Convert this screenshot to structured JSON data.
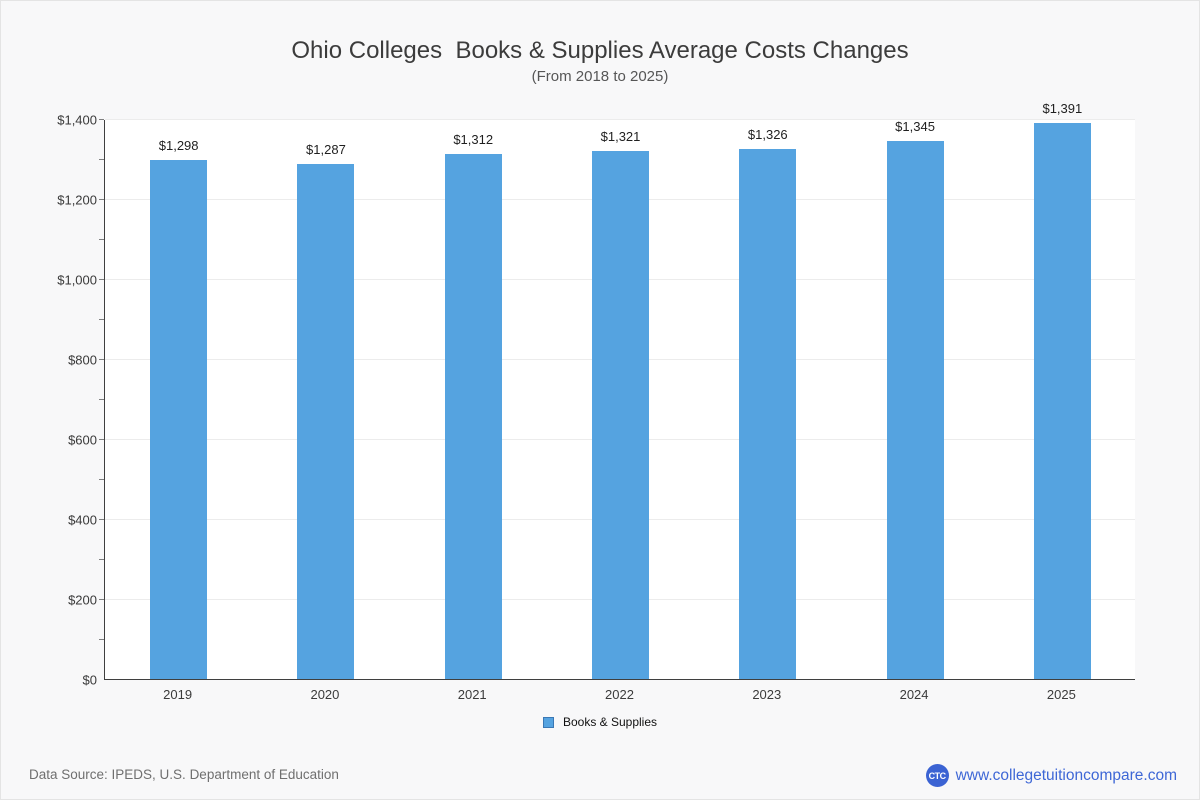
{
  "page": {
    "background_color": "#f8f8f9",
    "plot_background_color": "#ffffff",
    "accent_color": "#55a3e0"
  },
  "header": {
    "title": "Ohio Colleges  Books & Supplies Average Costs Changes",
    "subtitle": "(From 2018 to 2025)"
  },
  "chart_data": {
    "type": "bar",
    "title": "Ohio Colleges  Books & Supplies Average Costs Changes",
    "subtitle": "(From 2018 to 2025)",
    "categories": [
      "2019",
      "2020",
      "2021",
      "2022",
      "2023",
      "2024",
      "2025"
    ],
    "series": [
      {
        "name": "Books & Supplies",
        "values": [
          1298,
          1287,
          1312,
          1321,
          1326,
          1345,
          1391
        ],
        "labels": [
          "$1,298",
          "$1,287",
          "$1,312",
          "$1,321",
          "$1,326",
          "$1,345",
          "$1,391"
        ],
        "color": "#55a3e0"
      }
    ],
    "xlabel": "",
    "ylabel": "",
    "ylim": [
      0,
      1400
    ],
    "ytick_step": 200,
    "minor_tick_step": 100,
    "ytick_labels": [
      "$0",
      "$200",
      "$400",
      "$600",
      "$800",
      "$1,000",
      "$1,200",
      "$1,400"
    ],
    "grid": true,
    "gridline_color": "#ececec",
    "legend_position": "bottom"
  },
  "legend": {
    "items": [
      {
        "label": "Books & Supplies",
        "color": "#55a3e0",
        "border_color": "#3a78b5"
      }
    ]
  },
  "footer": {
    "source": "Data Source: IPEDS, U.S. Department of Education",
    "logo_text": "CTC",
    "logo_color": "#3b63d3",
    "website": "www.collegetuitioncompare.com",
    "link_color": "#3e67d6"
  }
}
